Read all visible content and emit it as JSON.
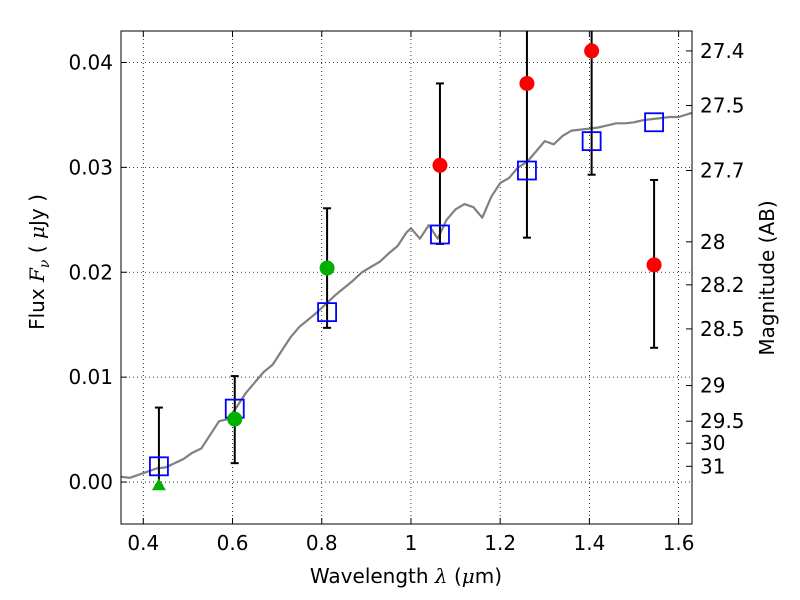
{
  "chart_data": {
    "type": "scatter",
    "title": "",
    "xlabel": {
      "prefix": "Wavelength  ",
      "symbol": "λ",
      "suffix_open": " (",
      "unit_mu": "μ",
      "suffix_close": "m)"
    },
    "ylabel": {
      "prefix": "Flux  ",
      "symbol": "F",
      "subscript": "ν",
      "suffix_open": "  ( ",
      "unit_mu": "μ",
      "suffix_close": "Jy )"
    },
    "y2label": "Magnitude (AB)",
    "xlim": [
      0.35,
      1.63
    ],
    "ylim": [
      -0.004,
      0.043
    ],
    "grid": true,
    "x_ticks": [
      {
        "value": 0.4,
        "label": "0.4"
      },
      {
        "value": 0.6,
        "label": "0.6"
      },
      {
        "value": 0.8,
        "label": "0.8"
      },
      {
        "value": 1.0,
        "label": "1"
      },
      {
        "value": 1.2,
        "label": "1.2"
      },
      {
        "value": 1.4,
        "label": "1.4"
      },
      {
        "value": 1.6,
        "label": "1.6"
      }
    ],
    "y_ticks": [
      {
        "value": 0.0,
        "label": "0.00"
      },
      {
        "value": 0.01,
        "label": "0.01"
      },
      {
        "value": 0.02,
        "label": "0.02"
      },
      {
        "value": 0.03,
        "label": "0.03"
      },
      {
        "value": 0.04,
        "label": "0.04"
      }
    ],
    "magnitude_ticks": [
      {
        "flux": 0.0411,
        "label": "27.4"
      },
      {
        "flux": 0.0359,
        "label": "27.5"
      },
      {
        "flux": 0.0297,
        "label": "27.7"
      },
      {
        "flux": 0.0229,
        "label": "28"
      },
      {
        "flux": 0.0188,
        "label": "28.2"
      },
      {
        "flux": 0.0146,
        "label": "28.5"
      },
      {
        "flux": 0.0092,
        "label": "29"
      },
      {
        "flux": 0.0058,
        "label": "29.5"
      },
      {
        "flux": 0.0037,
        "label": "30"
      },
      {
        "flux": 0.0015,
        "label": "31"
      }
    ],
    "model_spectrum": {
      "color": "#808080",
      "x": [
        0.35,
        0.37,
        0.39,
        0.41,
        0.43,
        0.45,
        0.47,
        0.49,
        0.51,
        0.53,
        0.55,
        0.57,
        0.59,
        0.61,
        0.63,
        0.65,
        0.67,
        0.69,
        0.71,
        0.73,
        0.75,
        0.77,
        0.79,
        0.81,
        0.83,
        0.85,
        0.87,
        0.89,
        0.91,
        0.93,
        0.95,
        0.97,
        0.99,
        1.0,
        1.02,
        1.04,
        1.06,
        1.08,
        1.1,
        1.12,
        1.14,
        1.16,
        1.18,
        1.2,
        1.22,
        1.24,
        1.26,
        1.28,
        1.3,
        1.32,
        1.34,
        1.36,
        1.38,
        1.4,
        1.42,
        1.44,
        1.46,
        1.48,
        1.5,
        1.52,
        1.54,
        1.56,
        1.58,
        1.6,
        1.63
      ],
      "y": [
        0.0005,
        0.0004,
        0.0007,
        0.001,
        0.0013,
        0.0014,
        0.0018,
        0.0022,
        0.0028,
        0.0032,
        0.0045,
        0.0058,
        0.006,
        0.0072,
        0.0085,
        0.0095,
        0.0105,
        0.0112,
        0.0125,
        0.0138,
        0.0148,
        0.0155,
        0.0162,
        0.017,
        0.0178,
        0.0185,
        0.0192,
        0.02,
        0.0205,
        0.021,
        0.0218,
        0.0225,
        0.0238,
        0.0242,
        0.0232,
        0.0245,
        0.0232,
        0.025,
        0.026,
        0.0265,
        0.0262,
        0.0252,
        0.0272,
        0.0285,
        0.029,
        0.03,
        0.0305,
        0.0315,
        0.0325,
        0.0322,
        0.033,
        0.0335,
        0.0336,
        0.0337,
        0.0338,
        0.034,
        0.0342,
        0.0342,
        0.0343,
        0.0345,
        0.0346,
        0.0347,
        0.0348,
        0.0348,
        0.0352
      ]
    },
    "observed_detections": {
      "color": "#ff0000",
      "points": [
        {
          "x": 1.065,
          "y": 0.0302,
          "err_low": 0.0075,
          "err_high": 0.0078
        },
        {
          "x": 1.26,
          "y": 0.038
        },
        {
          "x": 1.405,
          "y": 0.0411
        },
        {
          "x": 1.545,
          "y": 0.0207,
          "err_low": 0.0078,
          "err_high": 0.0081
        }
      ]
    },
    "observed_green": {
      "color": "#00b000",
      "points": [
        {
          "x": 0.605,
          "y": 0.006
        },
        {
          "x": 0.812,
          "y": 0.0204
        }
      ]
    },
    "upper_limit": {
      "color": "#00b000",
      "x": 0.435,
      "y": -0.0003
    },
    "model_points": {
      "color": "#0000ff",
      "points": [
        {
          "x": 0.435,
          "y": 0.0015
        },
        {
          "x": 0.605,
          "y": 0.007
        },
        {
          "x": 0.812,
          "y": 0.0162
        },
        {
          "x": 1.065,
          "y": 0.0236
        },
        {
          "x": 1.26,
          "y": 0.0297
        },
        {
          "x": 1.405,
          "y": 0.0325
        },
        {
          "x": 1.545,
          "y": 0.0343
        }
      ]
    },
    "error_bars": [
      {
        "x": 0.435,
        "low": -0.0003,
        "high": 0.0071
      },
      {
        "x": 0.605,
        "low": 0.0018,
        "high": 0.0101
      },
      {
        "x": 0.812,
        "low": 0.0147,
        "high": 0.0261
      },
      {
        "x": 1.065,
        "low": 0.0227,
        "high": 0.038
      },
      {
        "x": 1.26,
        "low": 0.0233,
        "high": 0.045
      },
      {
        "x": 1.405,
        "low": 0.0293,
        "high": 0.045
      },
      {
        "x": 1.545,
        "low": 0.0128,
        "high": 0.0288
      }
    ]
  }
}
